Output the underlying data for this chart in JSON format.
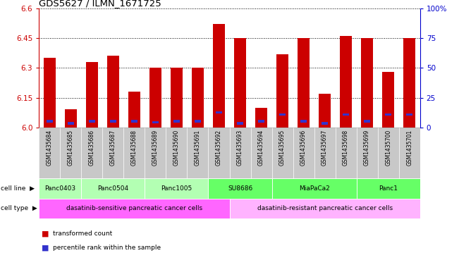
{
  "title": "GDS5627 / ILMN_1671725",
  "samples": [
    "GSM1435684",
    "GSM1435685",
    "GSM1435686",
    "GSM1435687",
    "GSM1435688",
    "GSM1435689",
    "GSM1435690",
    "GSM1435691",
    "GSM1435692",
    "GSM1435693",
    "GSM1435694",
    "GSM1435695",
    "GSM1435696",
    "GSM1435697",
    "GSM1435698",
    "GSM1435699",
    "GSM1435700",
    "GSM1435701"
  ],
  "red_values": [
    6.35,
    6.09,
    6.33,
    6.36,
    6.18,
    6.3,
    6.3,
    6.3,
    6.52,
    6.45,
    6.1,
    6.37,
    6.45,
    6.17,
    6.46,
    6.45,
    6.28,
    6.45
  ],
  "blue_values": [
    6.025,
    6.015,
    6.025,
    6.025,
    6.025,
    6.02,
    6.025,
    6.025,
    6.07,
    6.015,
    6.025,
    6.06,
    6.025,
    6.015,
    6.06,
    6.025,
    6.06,
    6.06
  ],
  "ymin": 6.0,
  "ymax": 6.6,
  "yticks": [
    6.0,
    6.15,
    6.3,
    6.45,
    6.6
  ],
  "right_yticks": [
    0,
    25,
    50,
    75,
    100
  ],
  "right_ytick_labels": [
    "0",
    "25",
    "50",
    "75",
    "100%"
  ],
  "cell_lines": [
    {
      "label": "Panc0403",
      "start": 0,
      "end": 2,
      "color": "#b3ffb3"
    },
    {
      "label": "Panc0504",
      "start": 2,
      "end": 5,
      "color": "#b3ffb3"
    },
    {
      "label": "Panc1005",
      "start": 5,
      "end": 8,
      "color": "#b3ffb3"
    },
    {
      "label": "SU8686",
      "start": 8,
      "end": 11,
      "color": "#66ff66"
    },
    {
      "label": "MiaPaCa2",
      "start": 11,
      "end": 15,
      "color": "#66ff66"
    },
    {
      "label": "Panc1",
      "start": 15,
      "end": 18,
      "color": "#66ff66"
    }
  ],
  "cell_types": [
    {
      "label": "dasatinib-sensitive pancreatic cancer cells",
      "start": 0,
      "end": 9,
      "color": "#ff66ff"
    },
    {
      "label": "dasatinib-resistant pancreatic cancer cells",
      "start": 9,
      "end": 18,
      "color": "#ffb3ff"
    }
  ],
  "bar_color": "#cc0000",
  "blue_color": "#3333cc",
  "sample_bg_color": "#c8c8c8",
  "left_axis_color": "#cc0000",
  "right_axis_color": "#0000cc"
}
